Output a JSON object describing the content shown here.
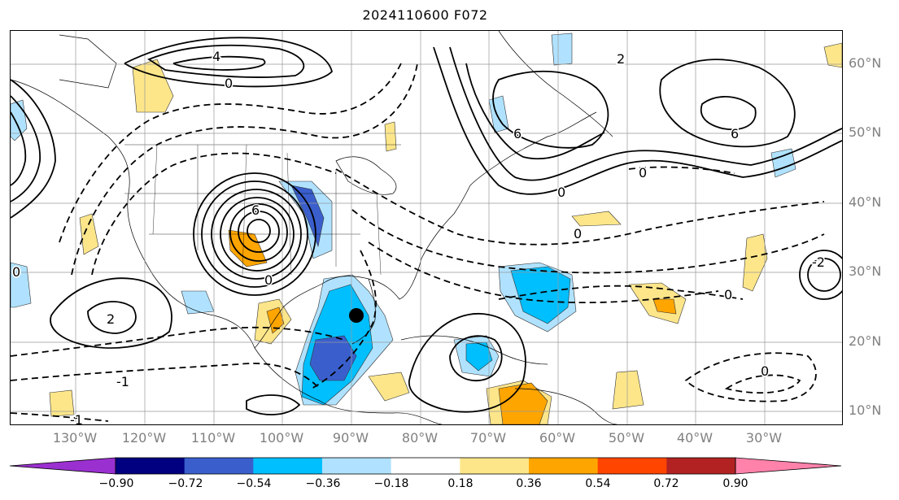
{
  "title": "2024110600 F072",
  "lat_labels": [
    "60°N",
    "50°N",
    "40°N",
    "30°N",
    "20°N",
    "10°N"
  ],
  "lon_labels": [
    "130°W",
    "120°W",
    "110°W",
    "100°W",
    "90°W",
    "80°W",
    "70°W",
    "60°W",
    "50°W",
    "40°W",
    "30°W"
  ],
  "colorbar": {
    "ticks": [
      "−0.90",
      "−0.72",
      "−0.54",
      "−0.36",
      "−0.18",
      "0.18",
      "0.36",
      "0.54",
      "0.72",
      "0.90"
    ],
    "colors": [
      "#9b30d0",
      "#000080",
      "#3a5fcd",
      "#00bfff",
      "#b0e2ff",
      "#ffffff",
      "#fde68a",
      "#ffa500",
      "#ff4500",
      "#b22222",
      "#ff82ab"
    ]
  },
  "contour_labels": [
    "0",
    "0",
    "0",
    "0",
    "0",
    "0",
    "2",
    "2",
    "4",
    "6",
    "6",
    "6",
    "-1",
    "-1",
    "-2",
    "0",
    "0"
  ]
}
